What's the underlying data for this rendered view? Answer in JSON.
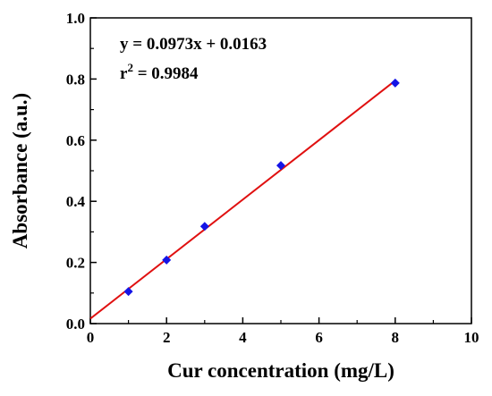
{
  "chart_data": {
    "type": "scatter",
    "xlabel": "Cur concentration (mg/L)",
    "ylabel": "Absorbance (a.u.)",
    "xlim": [
      0,
      10
    ],
    "ylim": [
      0.0,
      1.0
    ],
    "x_ticks": [
      "0",
      "2",
      "4",
      "6",
      "8",
      "10"
    ],
    "y_ticks": [
      "0.0",
      "0.2",
      "0.4",
      "0.6",
      "0.8",
      "1.0"
    ],
    "grid": false,
    "series": [
      {
        "marker": "diamond",
        "color": "#1414e6",
        "x": [
          1,
          2,
          3,
          5,
          8
        ],
        "y": [
          0.105,
          0.208,
          0.318,
          0.517,
          0.787
        ]
      }
    ],
    "fit_line": {
      "slope": 0.0973,
      "intercept": 0.0163,
      "x_range": [
        0,
        8
      ],
      "color": "#e01010"
    },
    "annotations": {
      "equation": "y = 0.0973x + 0.0163",
      "r2_prefix": "r",
      "r2_superscript": "2",
      "r2_suffix": " = 0.9984"
    }
  }
}
